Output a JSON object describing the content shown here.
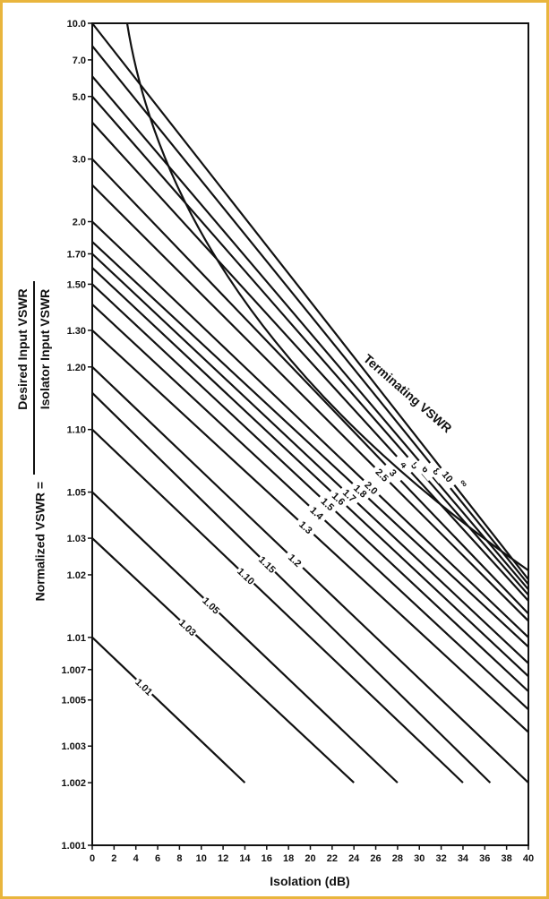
{
  "chart_data": {
    "type": "line",
    "xlabel": "Isolation (dB)",
    "ylabel_prefix": "Normalized VSWR =",
    "ylabel_numerator": "Desired Input VSWR",
    "ylabel_denominator": "Isolator Input VSWR",
    "legend_title": "Terminating VSWR",
    "xlim": [
      0,
      40
    ],
    "ylim": [
      1.001,
      10.0
    ],
    "y_scale": "log(VSWR-1)",
    "x_ticks": [
      "0",
      "2",
      "4",
      "6",
      "8",
      "10",
      "12",
      "14",
      "16",
      "18",
      "20",
      "22",
      "24",
      "26",
      "28",
      "30",
      "32",
      "34",
      "36",
      "38",
      "40"
    ],
    "y_ticks": [
      "10.0",
      "7.0",
      "5.0",
      "3.0",
      "2.0",
      "1.70",
      "1.50",
      "1.30",
      "1.20",
      "1.10",
      "1.05",
      "1.03",
      "1.02",
      "1.01",
      "1.007",
      "1.005",
      "1.003",
      "1.002",
      "1.001"
    ],
    "grid": false,
    "series": [
      {
        "name": "1.01",
        "points": [
          [
            0,
            1.01
          ],
          [
            14,
            1.002
          ]
        ]
      },
      {
        "name": "1.03",
        "points": [
          [
            0,
            1.03
          ],
          [
            24,
            1.002
          ]
        ]
      },
      {
        "name": "1.05",
        "points": [
          [
            0,
            1.05
          ],
          [
            28,
            1.002
          ]
        ]
      },
      {
        "name": "1.10",
        "points": [
          [
            0,
            1.1
          ],
          [
            34,
            1.002
          ]
        ]
      },
      {
        "name": "1.15",
        "points": [
          [
            0,
            1.15
          ],
          [
            36.5,
            1.002
          ]
        ]
      },
      {
        "name": "1.2",
        "points": [
          [
            0,
            1.2
          ],
          [
            40,
            1.002
          ]
        ]
      },
      {
        "name": "1.3",
        "points": [
          [
            0,
            1.3
          ],
          [
            40,
            1.0035
          ]
        ]
      },
      {
        "name": "1.4",
        "points": [
          [
            0,
            1.4
          ],
          [
            40,
            1.0045
          ]
        ]
      },
      {
        "name": "1.5",
        "points": [
          [
            0,
            1.5
          ],
          [
            40,
            1.0055
          ]
        ]
      },
      {
        "name": "1.6",
        "points": [
          [
            0,
            1.6
          ],
          [
            40,
            1.0065
          ]
        ]
      },
      {
        "name": "1.7",
        "points": [
          [
            0,
            1.7
          ],
          [
            40,
            1.0075
          ]
        ]
      },
      {
        "name": "1.8",
        "points": [
          [
            0,
            1.8
          ],
          [
            40,
            1.009
          ]
        ]
      },
      {
        "name": "2.0",
        "points": [
          [
            0,
            2.0
          ],
          [
            40,
            1.01
          ]
        ]
      },
      {
        "name": "2.5",
        "points": [
          [
            0,
            2.5
          ],
          [
            40,
            1.012
          ]
        ]
      },
      {
        "name": "3",
        "points": [
          [
            0,
            3.0
          ],
          [
            40,
            1.013
          ]
        ]
      },
      {
        "name": "4",
        "points": [
          [
            0,
            4.0
          ],
          [
            40,
            1.015
          ]
        ]
      },
      {
        "name": "5",
        "points": [
          [
            0,
            5.0
          ],
          [
            40,
            1.016
          ]
        ]
      },
      {
        "name": "6",
        "points": [
          [
            0,
            6.0
          ],
          [
            40,
            1.017
          ]
        ]
      },
      {
        "name": "8",
        "points": [
          [
            0,
            8.0
          ],
          [
            40,
            1.018
          ]
        ]
      },
      {
        "name": "10",
        "points": [
          [
            0,
            10.0
          ],
          [
            40,
            1.019
          ]
        ]
      },
      {
        "name": "∞",
        "points": [
          [
            3.2,
            10.0
          ],
          [
            40,
            1.021
          ]
        ]
      }
    ]
  }
}
